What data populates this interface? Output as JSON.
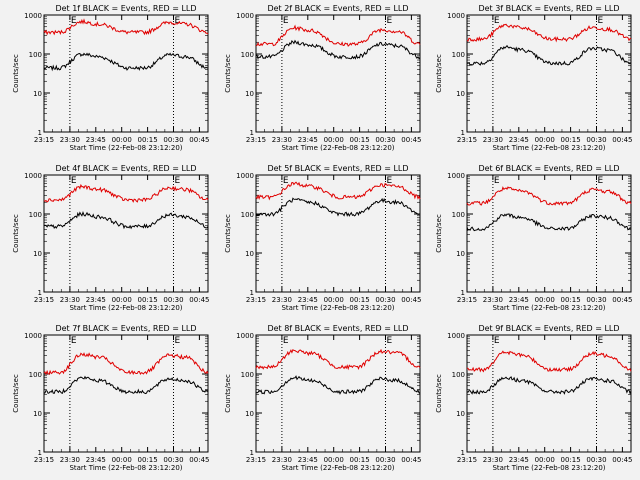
{
  "figure": {
    "background": "#f2f2f2",
    "axis_color": "#000000",
    "events_color": "#000000",
    "lld_color": "#e00000"
  },
  "chart_data": [
    {
      "type": "line",
      "title": "Det 1f BLACK = Events, RED = LLD",
      "ylabel": "Counts/sec",
      "xlabel": "Start Time (22-Feb-08 23:12:20)",
      "yscale": "log",
      "ylim": [
        1,
        1000
      ],
      "yticks": [
        "1",
        "10",
        "100",
        "1000"
      ],
      "xlim": [
        23.25,
        24.833
      ],
      "xticks": [
        "23:15",
        "23:30",
        "23:45",
        "00:00",
        "00:15",
        "00:30",
        "00:45"
      ],
      "markers": [
        {
          "label": "E",
          "x": 23.5
        },
        {
          "label": "E",
          "x": 24.5
        }
      ],
      "series": [
        {
          "name": "BLACK = Events",
          "color": "#000000",
          "level": [
            44,
            100,
            44,
            95,
            44
          ]
        },
        {
          "name": "RED = LLD",
          "color": "#e00000",
          "level": [
            360,
            680,
            360,
            650,
            360
          ]
        }
      ]
    },
    {
      "type": "line",
      "title": "Det 2f BLACK = Events, RED = LLD",
      "ylabel": "Counts/sec",
      "xlabel": "Start Time (22-Feb-08 23:12:20)",
      "yscale": "log",
      "ylim": [
        1,
        1000
      ],
      "yticks": [
        "1",
        "10",
        "100",
        "1000"
      ],
      "xlim": [
        23.25,
        24.833
      ],
      "xticks": [
        "23:15",
        "23:30",
        "23:45",
        "00:00",
        "00:15",
        "00:30",
        "00:45"
      ],
      "markers": [
        {
          "label": "E",
          "x": 23.5
        },
        {
          "label": "E",
          "x": 24.5
        }
      ],
      "series": [
        {
          "name": "BLACK = Events",
          "color": "#000000",
          "level": [
            85,
            200,
            85,
            180,
            85
          ]
        },
        {
          "name": "RED = LLD",
          "color": "#e00000",
          "level": [
            180,
            470,
            180,
            420,
            180
          ]
        }
      ]
    },
    {
      "type": "line",
      "title": "Det 3f BLACK = Events, RED = LLD",
      "ylabel": "Counts/sec",
      "xlabel": "Start Time (22-Feb-08 23:12:20)",
      "yscale": "log",
      "ylim": [
        1,
        1000
      ],
      "yticks": [
        "1",
        "10",
        "100",
        "1000"
      ],
      "xlim": [
        23.25,
        24.833
      ],
      "xticks": [
        "23:15",
        "23:30",
        "23:45",
        "00:00",
        "00:15",
        "00:30",
        "00:45"
      ],
      "markers": [
        {
          "label": "E",
          "x": 23.5
        },
        {
          "label": "E",
          "x": 24.5
        }
      ],
      "series": [
        {
          "name": "BLACK = Events",
          "color": "#000000",
          "level": [
            58,
            150,
            58,
            140,
            58
          ]
        },
        {
          "name": "RED = LLD",
          "color": "#e00000",
          "level": [
            240,
            550,
            240,
            480,
            240
          ]
        }
      ]
    },
    {
      "type": "line",
      "title": "Det 4f BLACK = Events, RED = LLD",
      "ylabel": "Counts/sec",
      "xlabel": "Start Time (22-Feb-08 23:12:20)",
      "yscale": "log",
      "ylim": [
        1,
        1000
      ],
      "yticks": [
        "1",
        "10",
        "100",
        "1000"
      ],
      "xlim": [
        23.25,
        24.833
      ],
      "xticks": [
        "23:15",
        "23:30",
        "23:45",
        "00:00",
        "00:15",
        "00:30",
        "00:45"
      ],
      "markers": [
        {
          "label": "E",
          "x": 23.5
        },
        {
          "label": "E",
          "x": 24.5
        }
      ],
      "series": [
        {
          "name": "BLACK = Events",
          "color": "#000000",
          "level": [
            48,
            100,
            48,
            95,
            48
          ]
        },
        {
          "name": "RED = LLD",
          "color": "#e00000",
          "level": [
            230,
            500,
            230,
            470,
            230
          ]
        }
      ]
    },
    {
      "type": "line",
      "title": "Det 5f BLACK = Events, RED = LLD",
      "ylabel": "Counts/sec",
      "xlabel": "Start Time (22-Feb-08 23:12:20)",
      "yscale": "log",
      "ylim": [
        1,
        1000
      ],
      "yticks": [
        "1",
        "10",
        "100",
        "1000"
      ],
      "xlim": [
        23.25,
        24.833
      ],
      "xticks": [
        "23:15",
        "23:30",
        "23:45",
        "00:00",
        "00:15",
        "00:30",
        "00:45"
      ],
      "markers": [
        {
          "label": "E",
          "x": 23.5
        },
        {
          "label": "E",
          "x": 24.5
        }
      ],
      "series": [
        {
          "name": "BLACK = Events",
          "color": "#000000",
          "level": [
            100,
            230,
            100,
            220,
            100
          ]
        },
        {
          "name": "RED = LLD",
          "color": "#e00000",
          "level": [
            270,
            600,
            270,
            560,
            270
          ]
        }
      ]
    },
    {
      "type": "line",
      "title": "Det 6f BLACK = Events, RED = LLD",
      "ylabel": "Counts/sec",
      "xlabel": "Start Time (22-Feb-08 23:12:20)",
      "yscale": "log",
      "ylim": [
        1,
        1000
      ],
      "yticks": [
        "1",
        "10",
        "100",
        "1000"
      ],
      "xlim": [
        23.25,
        24.833
      ],
      "xticks": [
        "23:15",
        "23:30",
        "23:45",
        "00:00",
        "00:15",
        "00:30",
        "00:45"
      ],
      "markers": [
        {
          "label": "E",
          "x": 23.5
        },
        {
          "label": "E",
          "x": 24.5
        }
      ],
      "series": [
        {
          "name": "BLACK = Events",
          "color": "#000000",
          "level": [
            42,
            95,
            42,
            90,
            42
          ]
        },
        {
          "name": "RED = LLD",
          "color": "#e00000",
          "level": [
            190,
            450,
            190,
            420,
            190
          ]
        }
      ]
    },
    {
      "type": "line",
      "title": "Det 7f BLACK = Events, RED = LLD",
      "ylabel": "Counts/sec",
      "xlabel": "Start Time (22-Feb-08 23:12:20)",
      "yscale": "log",
      "ylim": [
        1,
        1000
      ],
      "yticks": [
        "1",
        "10",
        "100",
        "1000"
      ],
      "xlim": [
        23.25,
        24.833
      ],
      "xticks": [
        "23:15",
        "23:30",
        "23:45",
        "00:00",
        "00:15",
        "00:30",
        "00:45"
      ],
      "markers": [
        {
          "label": "E",
          "x": 23.5
        },
        {
          "label": "E",
          "x": 24.5
        }
      ],
      "series": [
        {
          "name": "BLACK = Events",
          "color": "#000000",
          "level": [
            35,
            80,
            35,
            75,
            35
          ]
        },
        {
          "name": "RED = LLD",
          "color": "#e00000",
          "level": [
            110,
            320,
            110,
            300,
            110
          ]
        }
      ]
    },
    {
      "type": "line",
      "title": "Det 8f BLACK = Events, RED = LLD",
      "ylabel": "Counts/sec",
      "xlabel": "Start Time (22-Feb-08 23:12:20)",
      "yscale": "log",
      "ylim": [
        1,
        1000
      ],
      "yticks": [
        "1",
        "10",
        "100",
        "1000"
      ],
      "xlim": [
        23.25,
        24.833
      ],
      "xticks": [
        "23:15",
        "23:30",
        "23:45",
        "00:00",
        "00:15",
        "00:30",
        "00:45"
      ],
      "markers": [
        {
          "label": "E",
          "x": 23.5
        },
        {
          "label": "E",
          "x": 24.5
        }
      ],
      "series": [
        {
          "name": "BLACK = Events",
          "color": "#000000",
          "level": [
            35,
            80,
            35,
            75,
            35
          ]
        },
        {
          "name": "RED = LLD",
          "color": "#e00000",
          "level": [
            150,
            400,
            150,
            380,
            150
          ]
        }
      ]
    },
    {
      "type": "line",
      "title": "Det 9f BLACK = Events, RED = LLD",
      "ylabel": "Counts/sec",
      "xlabel": "Start Time (22-Feb-08 23:12:20)",
      "yscale": "log",
      "ylim": [
        1,
        1000
      ],
      "yticks": [
        "1",
        "10",
        "100",
        "1000"
      ],
      "xlim": [
        23.25,
        24.833
      ],
      "xticks": [
        "23:15",
        "23:30",
        "23:45",
        "00:00",
        "00:15",
        "00:30",
        "00:45"
      ],
      "markers": [
        {
          "label": "E",
          "x": 23.5
        },
        {
          "label": "E",
          "x": 24.5
        }
      ],
      "series": [
        {
          "name": "BLACK = Events",
          "color": "#000000",
          "level": [
            35,
            80,
            35,
            75,
            35
          ]
        },
        {
          "name": "RED = LLD",
          "color": "#e00000",
          "level": [
            130,
            360,
            130,
            330,
            130
          ]
        }
      ]
    }
  ]
}
